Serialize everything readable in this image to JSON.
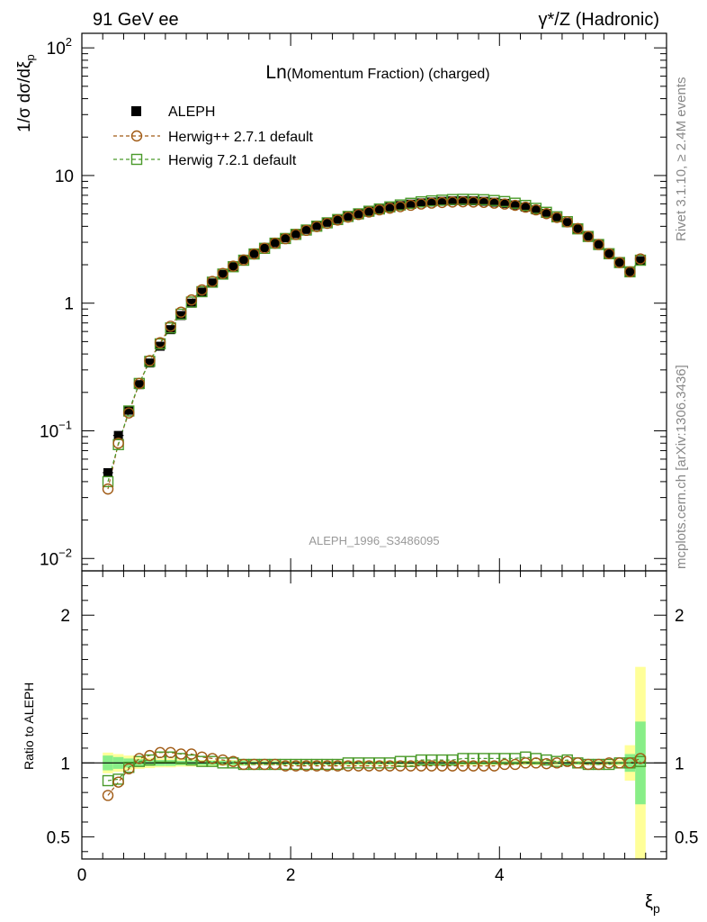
{
  "header": {
    "left": "91 GeV ee",
    "right": "γ*/Z (Hadronic)"
  },
  "side_text": {
    "top": "Rivet 3.1.10, ≥ 2.4M events",
    "bottom": "mcplots.cern.ch [arXiv:1306.3436]"
  },
  "colors": {
    "data": "#000000",
    "herwigpp": "#a05a14",
    "herwig7": "#4a9a2a",
    "band_outer": "#ffff99",
    "band_inner": "#88ee88",
    "watermark": "#999999"
  },
  "chart_data": [
    {
      "type": "scatter",
      "title": "Ln(Momentum Fraction) (charged)",
      "watermark": "ALEPH_1996_S3486095",
      "ylabel": "1/σ dσ/dξp",
      "ylog": true,
      "xlim": [
        0,
        5.6
      ],
      "ylim": [
        0.008,
        130
      ],
      "y_ticks": [
        {
          "v": 0.01,
          "label": "10",
          "exp": "−2"
        },
        {
          "v": 0.1,
          "label": "10",
          "exp": "−1"
        },
        {
          "v": 1,
          "label": "1",
          "exp": ""
        },
        {
          "v": 10,
          "label": "10",
          "exp": ""
        },
        {
          "v": 100,
          "label": "10",
          "exp": "2"
        }
      ],
      "legend": {
        "position": "top-left",
        "entries": [
          "ALEPH",
          "Herwig++ 2.7.1 default",
          "Herwig 7.2.1 default"
        ]
      },
      "x": [
        0.25,
        0.35,
        0.45,
        0.55,
        0.65,
        0.75,
        0.85,
        0.95,
        1.05,
        1.15,
        1.25,
        1.35,
        1.45,
        1.55,
        1.65,
        1.75,
        1.85,
        1.95,
        2.05,
        2.15,
        2.25,
        2.35,
        2.45,
        2.55,
        2.65,
        2.75,
        2.85,
        2.95,
        3.05,
        3.15,
        3.25,
        3.35,
        3.45,
        3.55,
        3.65,
        3.75,
        3.85,
        3.95,
        4.05,
        4.15,
        4.25,
        4.35,
        4.45,
        4.55,
        4.65,
        4.75,
        4.85,
        4.95,
        5.05,
        5.15,
        5.25,
        5.35
      ],
      "series": [
        {
          "name": "ALEPH",
          "values": [
            0.047,
            0.092,
            0.145,
            0.23,
            0.34,
            0.46,
            0.62,
            0.8,
            1.0,
            1.22,
            1.44,
            1.68,
            1.93,
            2.2,
            2.45,
            2.72,
            2.98,
            3.25,
            3.5,
            3.78,
            4.05,
            4.3,
            4.55,
            4.8,
            5.02,
            5.25,
            5.45,
            5.65,
            5.82,
            5.97,
            6.1,
            6.2,
            6.28,
            6.33,
            6.35,
            6.33,
            6.28,
            6.18,
            6.05,
            5.88,
            5.65,
            5.38,
            5.05,
            4.68,
            4.28,
            3.82,
            3.35,
            2.9,
            2.45,
            2.08,
            1.75,
            2.15
          ]
        },
        {
          "name": "Herwig++ 2.7.1 default",
          "values": [
            0.035,
            0.08,
            0.138,
            0.235,
            0.355,
            0.49,
            0.66,
            0.85,
            1.06,
            1.27,
            1.48,
            1.71,
            1.95,
            2.18,
            2.43,
            2.7,
            2.95,
            3.2,
            3.45,
            3.72,
            3.98,
            4.22,
            4.48,
            4.72,
            4.95,
            5.18,
            5.38,
            5.55,
            5.7,
            5.85,
            5.98,
            6.08,
            6.15,
            6.2,
            6.22,
            6.2,
            6.16,
            6.08,
            5.98,
            5.84,
            5.65,
            5.38,
            5.03,
            4.69,
            4.33,
            3.84,
            3.33,
            2.88,
            2.44,
            2.08,
            1.76,
            2.22
          ]
        },
        {
          "name": "Herwig 7.2.1 default",
          "values": [
            0.04,
            0.078,
            0.143,
            0.235,
            0.35,
            0.48,
            0.64,
            0.82,
            1.02,
            1.23,
            1.46,
            1.69,
            1.93,
            2.17,
            2.43,
            2.69,
            2.95,
            3.21,
            3.46,
            3.74,
            4.01,
            4.26,
            4.52,
            4.78,
            5.01,
            5.25,
            5.47,
            5.68,
            5.88,
            6.06,
            6.22,
            6.33,
            6.41,
            6.48,
            6.51,
            6.5,
            6.46,
            6.37,
            6.25,
            6.07,
            5.83,
            5.53,
            5.15,
            4.75,
            4.35,
            3.82,
            3.33,
            2.88,
            2.44,
            2.08,
            1.76,
            2.17
          ]
        }
      ]
    },
    {
      "type": "scatter",
      "ylabel": "Ratio to ALEPH",
      "xlabel": "ξp",
      "xlim": [
        0,
        5.6
      ],
      "ylim": [
        0.35,
        2.3
      ],
      "x_ticks": [
        0,
        2,
        4
      ],
      "y_ticks": [
        0.5,
        1,
        2
      ],
      "x": [
        0.25,
        0.35,
        0.45,
        0.55,
        0.65,
        0.75,
        0.85,
        0.95,
        1.05,
        1.15,
        1.25,
        1.35,
        1.45,
        1.55,
        1.65,
        1.75,
        1.85,
        1.95,
        2.05,
        2.15,
        2.25,
        2.35,
        2.45,
        2.55,
        2.65,
        2.75,
        2.85,
        2.95,
        3.05,
        3.15,
        3.25,
        3.35,
        3.45,
        3.55,
        3.65,
        3.75,
        3.85,
        3.95,
        4.05,
        4.15,
        4.25,
        4.35,
        4.45,
        4.55,
        4.65,
        4.75,
        4.85,
        4.95,
        5.05,
        5.15,
        5.25,
        5.35
      ],
      "band_inner": [
        0.05,
        0.04,
        0.03,
        0.025,
        0.02,
        0.02,
        0.02,
        0.015,
        0.015,
        0.015,
        0.015,
        0.015,
        0.015,
        0.015,
        0.01,
        0.01,
        0.01,
        0.01,
        0.01,
        0.01,
        0.01,
        0.01,
        0.01,
        0.01,
        0.01,
        0.01,
        0.01,
        0.01,
        0.01,
        0.01,
        0.01,
        0.01,
        0.01,
        0.01,
        0.01,
        0.01,
        0.01,
        0.01,
        0.01,
        0.01,
        0.01,
        0.01,
        0.01,
        0.01,
        0.01,
        0.01,
        0.01,
        0.01,
        0.01,
        0.01,
        0.06,
        0.28
      ],
      "band_outer": [
        0.07,
        0.06,
        0.05,
        0.04,
        0.035,
        0.03,
        0.03,
        0.025,
        0.025,
        0.02,
        0.02,
        0.02,
        0.02,
        0.02,
        0.015,
        0.015,
        0.015,
        0.015,
        0.015,
        0.015,
        0.015,
        0.015,
        0.015,
        0.015,
        0.015,
        0.015,
        0.015,
        0.015,
        0.015,
        0.015,
        0.015,
        0.015,
        0.015,
        0.015,
        0.015,
        0.015,
        0.015,
        0.015,
        0.015,
        0.015,
        0.015,
        0.015,
        0.015,
        0.015,
        0.015,
        0.015,
        0.015,
        0.015,
        0.015,
        0.02,
        0.12,
        0.65
      ],
      "series": [
        {
          "name": "Herwig++ 2.7.1 default",
          "values": [
            0.78,
            0.87,
            0.96,
            1.03,
            1.05,
            1.07,
            1.07,
            1.06,
            1.06,
            1.04,
            1.03,
            1.02,
            1.01,
            0.99,
            0.99,
            0.99,
            0.99,
            0.98,
            0.98,
            0.98,
            0.98,
            0.98,
            0.98,
            0.98,
            0.98,
            0.98,
            0.98,
            0.98,
            0.98,
            0.98,
            0.98,
            0.98,
            0.98,
            0.98,
            0.98,
            0.98,
            0.98,
            0.98,
            0.99,
            0.99,
            1.0,
            1.0,
            0.995,
            1.0,
            1.01,
            1.0,
            0.99,
            0.99,
            1.0,
            1.0,
            1.0,
            1.03
          ]
        },
        {
          "name": "Herwig 7.2.1 default",
          "values": [
            0.88,
            0.89,
            0.97,
            1.01,
            1.02,
            1.04,
            1.04,
            1.03,
            1.02,
            1.01,
            1.01,
            1.0,
            1.0,
            0.99,
            0.99,
            0.99,
            0.99,
            0.99,
            0.99,
            0.99,
            0.99,
            0.99,
            0.99,
            1.0,
            1.0,
            1.0,
            1.0,
            1.0,
            1.01,
            1.01,
            1.02,
            1.02,
            1.02,
            1.02,
            1.03,
            1.03,
            1.03,
            1.03,
            1.03,
            1.03,
            1.04,
            1.03,
            1.02,
            1.01,
            1.02,
            1.0,
            0.99,
            0.99,
            0.99,
            1.0,
            1.0,
            1.01
          ]
        }
      ]
    }
  ]
}
